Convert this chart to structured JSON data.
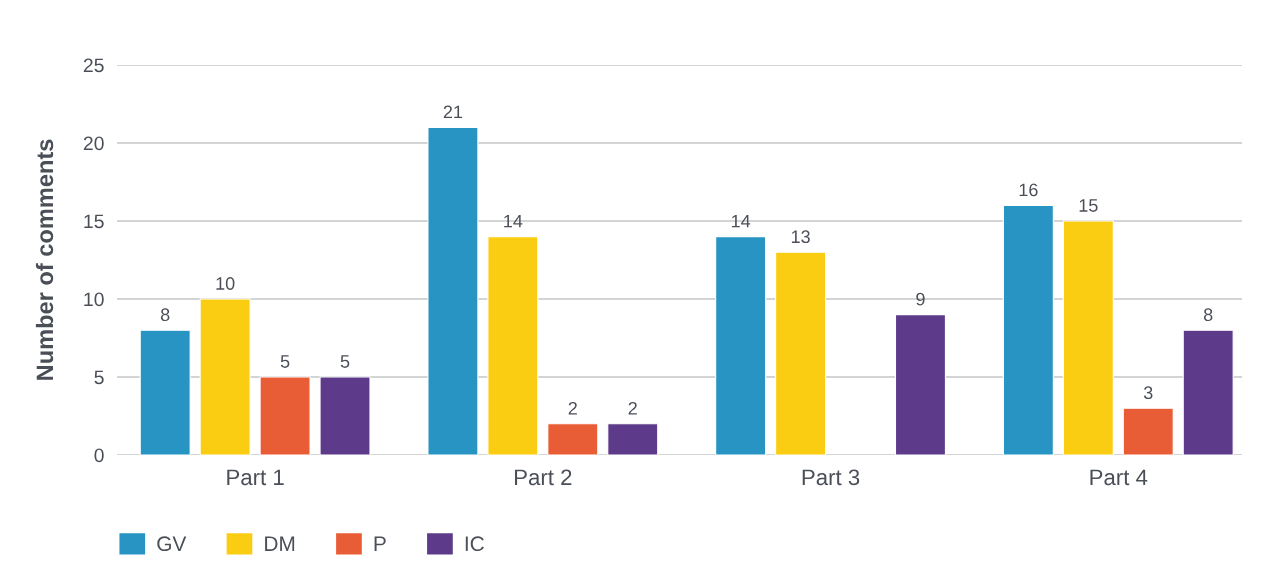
{
  "chart_data": {
    "type": "bar",
    "ylabel": "Number of comments",
    "categories": [
      "Part 1",
      "Part 2",
      "Part 3",
      "Part 4"
    ],
    "series": [
      {
        "name": "GV",
        "color": "#2794c3",
        "values": [
          8,
          21,
          14,
          16
        ]
      },
      {
        "name": "DM",
        "color": "#fbcd12",
        "values": [
          10,
          14,
          13,
          15
        ]
      },
      {
        "name": "P",
        "color": "#e85d35",
        "values": [
          5,
          2,
          null,
          3
        ]
      },
      {
        "name": "IC",
        "color": "#5e3b8a",
        "values": [
          5,
          2,
          9,
          8
        ]
      }
    ],
    "ylim": [
      0,
      25
    ],
    "yticks": [
      0,
      5,
      10,
      15,
      20,
      25
    ],
    "grid": "y",
    "legend": "bottom left",
    "data_labels": true
  }
}
